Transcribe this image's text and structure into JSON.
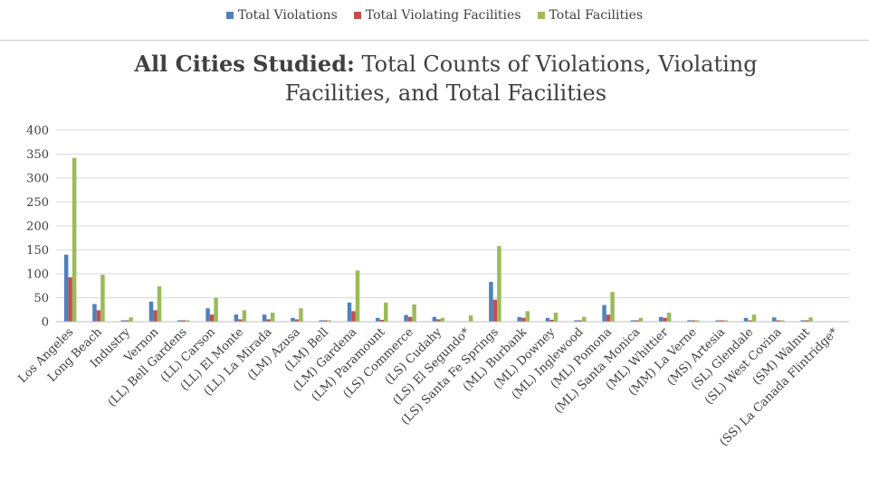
{
  "chart_data": {
    "type": "bar",
    "title_bold": "All Cities Studied:",
    "title_rest": "Total Counts of Violations, Violating Facilities, and Total Facilities",
    "xlabel": "",
    "ylabel": "",
    "ylim": [
      0,
      400
    ],
    "yticks": [
      "0",
      "50",
      "100",
      "150",
      "200",
      "250",
      "300",
      "350",
      "400"
    ],
    "grid": true,
    "legend_position": "top",
    "categories": [
      "Los Angeles",
      "Long Beach",
      "Industry",
      "Vernon",
      "(LL) Bell Gardens",
      "(LL) Carson",
      "(LL) El Monte",
      "(LL) La Mirada",
      "(LM) Azusa",
      "(LM) Bell",
      "(LM) Gardena",
      "(LM) Paramount",
      "(LS) Commerce",
      "(LS) Cudahy",
      "(LS) El Segundo*",
      "(LS) Santa Fe Springs",
      "(ML) Burbank",
      "(ML) Downey",
      "(ML) Inglewood",
      "(ML) Pomona",
      "(ML) Santa Monica",
      "(ML) Whittier",
      "(MM) La Verne",
      "(MS) Artesia",
      "(SL) Glendale",
      "(SL) West Covina",
      "(SM) Walnut",
      "(SS) La Canada Flintridge*"
    ],
    "series": [
      {
        "name": "Total Violations",
        "color": "#4f81bd",
        "values": [
          140,
          37,
          3,
          42,
          3,
          28,
          15,
          15,
          8,
          3,
          40,
          8,
          14,
          10,
          0,
          83,
          10,
          8,
          3,
          35,
          3,
          10,
          3,
          3,
          8,
          9,
          3,
          0
        ]
      },
      {
        "name": "Total Violating Facilities",
        "color": "#c0504d",
        "values": [
          93,
          24,
          3,
          24,
          3,
          15,
          5,
          5,
          5,
          3,
          22,
          4,
          10,
          5,
          0,
          46,
          8,
          4,
          3,
          15,
          3,
          8,
          3,
          3,
          3,
          3,
          3,
          0
        ]
      },
      {
        "name": "Total Facilities",
        "color": "#9bbb59",
        "values": [
          342,
          98,
          9,
          74,
          3,
          50,
          24,
          19,
          28,
          3,
          107,
          40,
          36,
          8,
          13,
          158,
          22,
          19,
          10,
          62,
          8,
          19,
          3,
          3,
          15,
          3,
          9,
          0
        ]
      }
    ]
  }
}
